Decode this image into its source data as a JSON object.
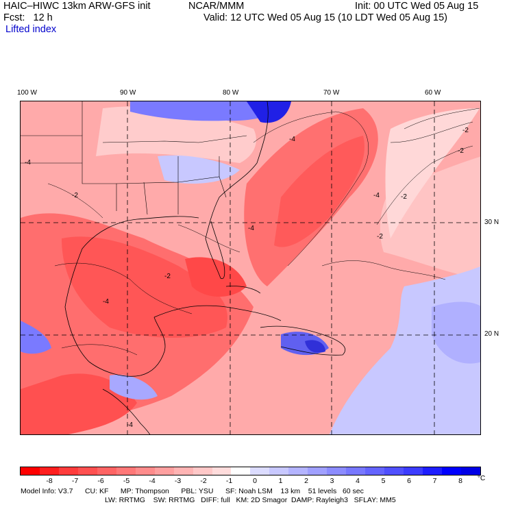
{
  "header": {
    "model": "HAIC–HIWC 13km ARW-GFS init",
    "org": "NCAR/MMM",
    "init": "Init: 00 UTC Wed 05 Aug 15",
    "fcst": "Fcst:   12 h",
    "valid": "Valid: 12 UTC Wed 05 Aug 15 (10 LDT Wed 05 Aug 15)",
    "field": "Lifted index"
  },
  "axes": {
    "longitudes": [
      "100 W",
      "90 W",
      "80 W",
      "70 W",
      "60 W"
    ],
    "latitudes": [
      "30 N",
      "20 N"
    ]
  },
  "colorbar": {
    "ticks": [
      "-8",
      "-7",
      "-6",
      "-5",
      "-4",
      "-3",
      "-2",
      "-1",
      "0",
      "1",
      "2",
      "3",
      "4",
      "5",
      "6",
      "7",
      "8"
    ],
    "unit": "°C",
    "colors": [
      "#ff0000",
      "#ff1e1e",
      "#ff3c3c",
      "#ff5050",
      "#ff6464",
      "#ff7878",
      "#ff8c8c",
      "#ffa0a0",
      "#ffb4b4",
      "#ffc8c8",
      "#ffdcdc",
      "#ffffff",
      "#dcdcff",
      "#c8c8ff",
      "#b4b4ff",
      "#a0a0ff",
      "#8c8cff",
      "#7878ff",
      "#6464ff",
      "#5050ff",
      "#3c3cff",
      "#1e1eff",
      "#0000ff",
      "#0000e6"
    ]
  },
  "footer": {
    "line1": "Model Info: V3.7      CU: KF      MP: Thompson      PBL: YSU      SF: Noah LSM    13 km    51 levels   60 sec",
    "line2": "LW: RRTMG    SW: RRTMG   DIFF: full   KM: 2D Smagor  DAMP: Rayleigh3   SFLAY: MM5"
  },
  "map": {
    "contour_labels": [
      "-4",
      "-2",
      "-4",
      "-2",
      "-2",
      "-4",
      "-2",
      "-2",
      "-4",
      "-4",
      "-2",
      "-4"
    ]
  }
}
